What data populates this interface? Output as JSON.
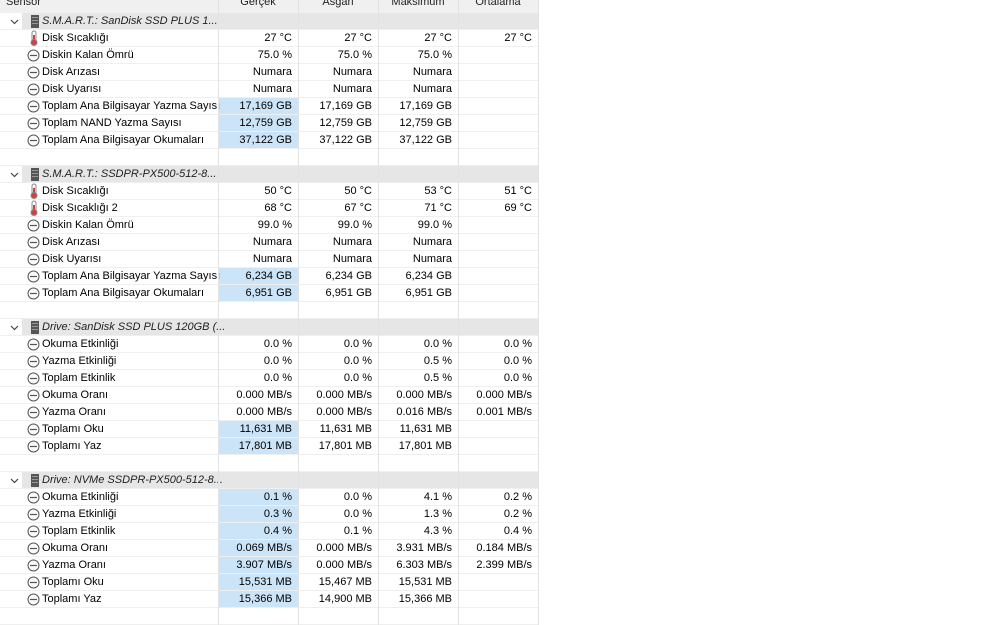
{
  "header": {
    "columns": [
      "Sensör",
      "Gerçek",
      "Asgari",
      "Maksimum",
      "Ortalama"
    ]
  },
  "groups": [
    {
      "title": "S.M.A.R.T.: SanDisk SSD PLUS 1...",
      "rows": [
        {
          "label": "Disk Sıcaklığı",
          "icon": "thermometer",
          "values": [
            "27 °C",
            "27 °C",
            "27 °C",
            "27 °C"
          ]
        },
        {
          "label": "Diskin Kalan Ömrü",
          "icon": "gauge",
          "values": [
            "75.0 %",
            "75.0 %",
            "75.0 %"
          ]
        },
        {
          "label": "Disk Arızası",
          "icon": "gauge",
          "values": [
            "Numara",
            "Numara",
            "Numara"
          ]
        },
        {
          "label": "Disk Uyarısı",
          "icon": "gauge",
          "values": [
            "Numara",
            "Numara",
            "Numara"
          ]
        },
        {
          "label": "Toplam Ana Bilgisayar Yazma Sayısı",
          "icon": "gauge",
          "highlight": true,
          "values": [
            "17,169 GB",
            "17,169 GB",
            "17,169 GB"
          ]
        },
        {
          "label": "Toplam NAND Yazma Sayısı",
          "icon": "gauge",
          "highlight": true,
          "values": [
            "12,759 GB",
            "12,759 GB",
            "12,759 GB"
          ]
        },
        {
          "label": "Toplam Ana Bilgisayar Okumaları",
          "icon": "gauge",
          "highlight": true,
          "values": [
            "37,122 GB",
            "37,122 GB",
            "37,122 GB"
          ]
        }
      ]
    },
    {
      "title": "S.M.A.R.T.: SSDPR-PX500-512-8...",
      "rows": [
        {
          "label": "Disk Sıcaklığı",
          "icon": "thermometer",
          "values": [
            "50 °C",
            "50 °C",
            "53 °C",
            "51 °C"
          ]
        },
        {
          "label": "Disk Sıcaklığı 2",
          "icon": "thermometer",
          "values": [
            "68 °C",
            "67 °C",
            "71 °C",
            "69 °C"
          ]
        },
        {
          "label": "Diskin Kalan Ömrü",
          "icon": "gauge",
          "values": [
            "99.0 %",
            "99.0 %",
            "99.0 %"
          ]
        },
        {
          "label": "Disk Arızası",
          "icon": "gauge",
          "values": [
            "Numara",
            "Numara",
            "Numara"
          ]
        },
        {
          "label": "Disk Uyarısı",
          "icon": "gauge",
          "values": [
            "Numara",
            "Numara",
            "Numara"
          ]
        },
        {
          "label": "Toplam Ana Bilgisayar Yazma Sayısı",
          "icon": "gauge",
          "highlight": true,
          "values": [
            "6,234 GB",
            "6,234 GB",
            "6,234 GB"
          ]
        },
        {
          "label": "Toplam Ana Bilgisayar Okumaları",
          "icon": "gauge",
          "highlight": true,
          "values": [
            "6,951 GB",
            "6,951 GB",
            "6,951 GB"
          ]
        }
      ]
    },
    {
      "title": "Drive: SanDisk SSD PLUS 120GB (...",
      "rows": [
        {
          "label": "Okuma Etkinliği",
          "icon": "gauge",
          "values": [
            "0.0 %",
            "0.0 %",
            "0.0 %",
            "0.0 %"
          ]
        },
        {
          "label": "Yazma Etkinliği",
          "icon": "gauge",
          "values": [
            "0.0 %",
            "0.0 %",
            "0.5 %",
            "0.0 %"
          ]
        },
        {
          "label": "Toplam Etkinlik",
          "icon": "gauge",
          "values": [
            "0.0 %",
            "0.0 %",
            "0.5 %",
            "0.0 %"
          ]
        },
        {
          "label": "Okuma Oranı",
          "icon": "gauge",
          "values": [
            "0.000 MB/s",
            "0.000 MB/s",
            "0.000 MB/s",
            "0.000 MB/s"
          ]
        },
        {
          "label": "Yazma Oranı",
          "icon": "gauge",
          "values": [
            "0.000 MB/s",
            "0.000 MB/s",
            "0.016 MB/s",
            "0.001 MB/s"
          ]
        },
        {
          "label": "Toplamı Oku",
          "icon": "gauge",
          "highlight": true,
          "values": [
            "11,631 MB",
            "11,631 MB",
            "11,631 MB"
          ]
        },
        {
          "label": "Toplamı Yaz",
          "icon": "gauge",
          "highlight": true,
          "values": [
            "17,801 MB",
            "17,801 MB",
            "17,801 MB"
          ]
        }
      ]
    },
    {
      "title": "Drive: NVMe SSDPR-PX500-512-8...",
      "rows": [
        {
          "label": "Okuma Etkinliği",
          "icon": "gauge",
          "highlight": true,
          "values": [
            "0.1 %",
            "0.0 %",
            "4.1 %",
            "0.2 %"
          ]
        },
        {
          "label": "Yazma Etkinliği",
          "icon": "gauge",
          "highlight": true,
          "values": [
            "0.3 %",
            "0.0 %",
            "1.3 %",
            "0.2 %"
          ]
        },
        {
          "label": "Toplam Etkinlik",
          "icon": "gauge",
          "highlight": true,
          "values": [
            "0.4 %",
            "0.1 %",
            "4.3 %",
            "0.4 %"
          ]
        },
        {
          "label": "Okuma Oranı",
          "icon": "gauge",
          "highlight": true,
          "values": [
            "0.069 MB/s",
            "0.000 MB/s",
            "3.931 MB/s",
            "0.184 MB/s"
          ]
        },
        {
          "label": "Yazma Oranı",
          "icon": "gauge",
          "highlight": true,
          "values": [
            "3.907 MB/s",
            "0.000 MB/s",
            "6.303 MB/s",
            "2.399 MB/s"
          ]
        },
        {
          "label": "Toplamı Oku",
          "icon": "gauge",
          "highlight": true,
          "values": [
            "15,531 MB",
            "15,467 MB",
            "15,531 MB"
          ]
        },
        {
          "label": "Toplamı Yaz",
          "icon": "gauge",
          "highlight": true,
          "values": [
            "15,366 MB",
            "14,900 MB",
            "15,366 MB"
          ]
        }
      ]
    }
  ]
}
